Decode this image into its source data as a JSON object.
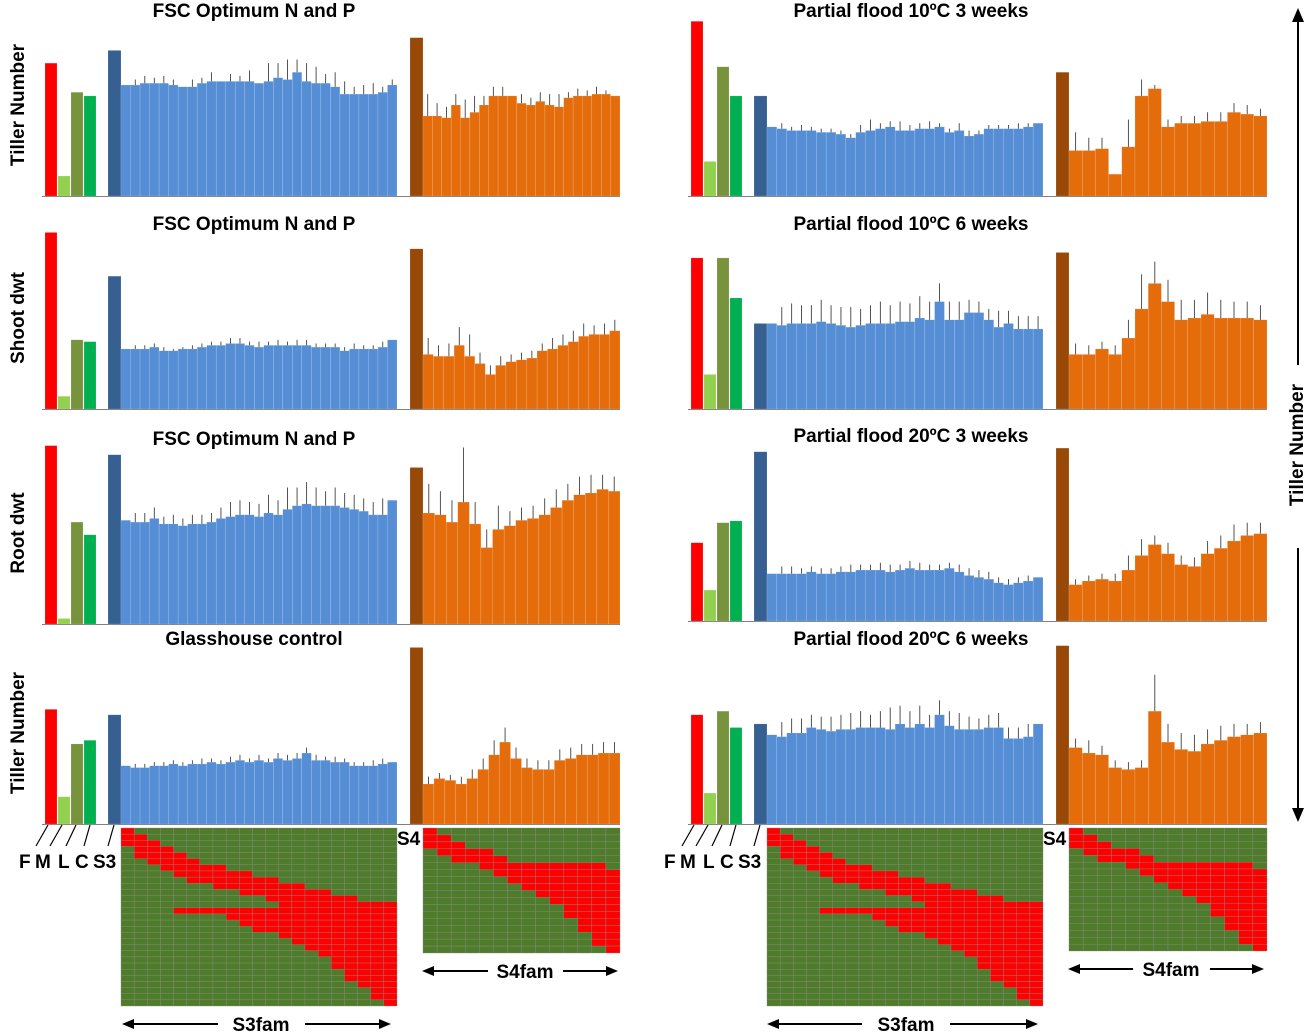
{
  "figure": {
    "right_axis_label": "Tiller Number",
    "parent_labels": [
      "F",
      "M",
      "L",
      "C",
      "S3"
    ],
    "s4_label": "S4",
    "s3fam_label": "S3fam",
    "s4fam_label": "S4fam"
  },
  "colors": {
    "F": "#ff0000",
    "M": "#92d050",
    "L": "#77933c",
    "C": "#00b050",
    "S3": "#376092",
    "S3fam": "#558ed5",
    "S4": "#984807",
    "S4fam": "#e46c0a",
    "genotype_red": "#ff0000",
    "genotype_green": "#4f7c2a"
  },
  "chart_data": [
    {
      "type": "bar",
      "title": "FSC Optimum N and P",
      "ylabel": "Tiller Number",
      "parents": {
        "F": 0.73,
        "M": 0.11,
        "L": 0.57,
        "C": 0.55,
        "S3": 0.8,
        "S4": 0.87
      },
      "s3fam": [
        0.61,
        0.61,
        0.62,
        0.62,
        0.62,
        0.61,
        0.6,
        0.6,
        0.62,
        0.63,
        0.63,
        0.63,
        0.63,
        0.63,
        0.62,
        0.63,
        0.65,
        0.64,
        0.68,
        0.63,
        0.62,
        0.62,
        0.6,
        0.56,
        0.56,
        0.56,
        0.56,
        0.57,
        0.61
      ],
      "s3fam_err": [
        0,
        0.03,
        0.04,
        0.03,
        0.04,
        0.03,
        0,
        0.04,
        0.03,
        0.05,
        0,
        0.04,
        0.03,
        0.06,
        0,
        0.1,
        0.08,
        0.11,
        0.07,
        0.1,
        0.09,
        0.05,
        0.08,
        0.07,
        0.04,
        0.05,
        0.06,
        0.03,
        0.03
      ],
      "s4fam": [
        0.44,
        0.44,
        0.43,
        0.5,
        0.43,
        0.46,
        0.5,
        0.55,
        0.55,
        0.55,
        0.51,
        0.5,
        0.52,
        0.5,
        0.49,
        0.54,
        0.55,
        0.55,
        0.56,
        0.56,
        0.55
      ],
      "s4fam_err": [
        0.12,
        0.07,
        0.06,
        0.06,
        0.1,
        0.09,
        0.05,
        0.05,
        0.05,
        0,
        0.05,
        0.04,
        0.05,
        0.06,
        0.07,
        0.03,
        0.04,
        0.03,
        0.04,
        0.02,
        0
      ]
    },
    {
      "type": "bar",
      "title": "FSC Optimum N and P",
      "ylabel": "Shoot dwt",
      "parents": {
        "F": 0.97,
        "M": 0.07,
        "L": 0.38,
        "C": 0.37,
        "S3": 0.73,
        "S4": 0.88
      },
      "s3fam": [
        0.33,
        0.33,
        0.33,
        0.34,
        0.32,
        0.32,
        0.33,
        0.33,
        0.34,
        0.35,
        0.35,
        0.36,
        0.36,
        0.35,
        0.34,
        0.35,
        0.35,
        0.35,
        0.35,
        0.35,
        0.34,
        0.34,
        0.34,
        0.32,
        0.33,
        0.33,
        0.33,
        0.34,
        0.38
      ],
      "s3fam_err": [
        0,
        0.02,
        0.02,
        0.02,
        0.02,
        0.01,
        0.01,
        0.02,
        0.02,
        0.02,
        0.02,
        0.03,
        0.03,
        0.02,
        0.03,
        0.02,
        0.03,
        0.02,
        0.03,
        0.03,
        0.02,
        0.02,
        0.02,
        0.02,
        0.03,
        0.02,
        0.02,
        0.03,
        0
      ],
      "s4fam": [
        0.3,
        0.29,
        0.29,
        0.35,
        0.29,
        0.25,
        0.19,
        0.24,
        0.26,
        0.27,
        0.28,
        0.32,
        0.33,
        0.35,
        0.37,
        0.4,
        0.41,
        0.41,
        0.43
      ],
      "s4fam_err": [
        0.09,
        0.06,
        0.07,
        0.1,
        0.12,
        0.06,
        0.05,
        0.05,
        0.04,
        0.04,
        0.04,
        0.04,
        0.06,
        0.06,
        0.06,
        0.07,
        0.05,
        0.06,
        0.06
      ]
    },
    {
      "type": "bar",
      "title": "FSC Optimum N and P",
      "ylabel": "Root dwt",
      "parents": {
        "F": 0.98,
        "M": 0.03,
        "L": 0.56,
        "C": 0.49,
        "S3": 0.93,
        "S4": 0.86
      },
      "s3fam": [
        0.57,
        0.56,
        0.56,
        0.58,
        0.55,
        0.55,
        0.54,
        0.55,
        0.55,
        0.56,
        0.58,
        0.59,
        0.6,
        0.6,
        0.59,
        0.61,
        0.6,
        0.63,
        0.65,
        0.66,
        0.65,
        0.65,
        0.65,
        0.64,
        0.63,
        0.62,
        0.6,
        0.6,
        0.68
      ],
      "s3fam_err": [
        0,
        0.05,
        0.05,
        0.06,
        0.04,
        0.05,
        0.04,
        0.05,
        0.05,
        0.05,
        0.06,
        0.08,
        0.08,
        0.07,
        0.07,
        0.1,
        0.08,
        0.12,
        0.1,
        0.12,
        0.1,
        0.08,
        0.1,
        0.08,
        0.08,
        0.07,
        0.07,
        0.09,
        0
      ],
      "s4fam": [
        0.61,
        0.6,
        0.56,
        0.67,
        0.55,
        0.42,
        0.52,
        0.54,
        0.57,
        0.58,
        0.6,
        0.64,
        0.68,
        0.71,
        0.72,
        0.74,
        0.73
      ],
      "s4fam_err": [
        0.16,
        0.13,
        0.12,
        0.3,
        0.12,
        0.1,
        0.13,
        0.08,
        0.07,
        0.07,
        0.09,
        0.1,
        0.09,
        0.1,
        0.1,
        0.08,
        0.08
      ]
    },
    {
      "type": "bar",
      "title": "Glasshouse control",
      "ylabel": "Tiller Number",
      "parents": {
        "F": 0.63,
        "M": 0.15,
        "L": 0.44,
        "C": 0.46,
        "S3": 0.6,
        "S4": 0.97
      },
      "s3fam": [
        0.32,
        0.31,
        0.31,
        0.32,
        0.32,
        0.33,
        0.32,
        0.33,
        0.33,
        0.34,
        0.33,
        0.34,
        0.35,
        0.34,
        0.35,
        0.34,
        0.36,
        0.35,
        0.36,
        0.39,
        0.35,
        0.35,
        0.34,
        0.34,
        0.32,
        0.32,
        0.32,
        0.33,
        0.34
      ],
      "s3fam_err": [
        0,
        0.02,
        0.02,
        0.02,
        0.02,
        0.02,
        0.02,
        0.02,
        0.03,
        0.02,
        0.02,
        0.03,
        0.03,
        0.02,
        0.03,
        0.02,
        0.03,
        0.03,
        0.03,
        0.03,
        0.03,
        0.02,
        0.03,
        0.02,
        0.02,
        0.02,
        0.03,
        0.03,
        0
      ],
      "s4fam": [
        0.22,
        0.25,
        0.24,
        0.22,
        0.25,
        0.3,
        0.38,
        0.45,
        0.36,
        0.31,
        0.3,
        0.3,
        0.35,
        0.36,
        0.38,
        0.38,
        0.39,
        0.39
      ],
      "s4fam_err": [
        0.04,
        0.03,
        0.03,
        0.04,
        0.05,
        0.06,
        0.08,
        0.08,
        0.06,
        0.05,
        0.05,
        0.05,
        0.06,
        0.06,
        0.06,
        0.06,
        0.06,
        0.06
      ]
    },
    {
      "type": "bar",
      "title": "Partial flood 10ºC 3 weeks",
      "ylabel": "",
      "parents": {
        "F": 0.96,
        "M": 0.19,
        "L": 0.71,
        "C": 0.55,
        "S3": 0.55,
        "S4": 0.68
      },
      "s3fam": [
        0.38,
        0.37,
        0.36,
        0.36,
        0.36,
        0.35,
        0.35,
        0.34,
        0.32,
        0.35,
        0.36,
        0.37,
        0.38,
        0.36,
        0.36,
        0.37,
        0.37,
        0.38,
        0.35,
        0.36,
        0.33,
        0.34,
        0.37,
        0.37,
        0.37,
        0.37,
        0.38,
        0.4
      ],
      "s3fam_err": [
        0,
        0.03,
        0.02,
        0.03,
        0.02,
        0.02,
        0.02,
        0.02,
        0.02,
        0.04,
        0.06,
        0.03,
        0.03,
        0.05,
        0.03,
        0.03,
        0.04,
        0.02,
        0.02,
        0.04,
        0.03,
        0.02,
        0.02,
        0.02,
        0.02,
        0.03,
        0.02,
        0
      ],
      "s4fam": [
        0.25,
        0.25,
        0.26,
        0.12,
        0.27,
        0.55,
        0.59,
        0.38,
        0.4,
        0.4,
        0.41,
        0.41,
        0.46,
        0.45,
        0.44
      ],
      "s4fam_err": [
        0.1,
        0.07,
        0.06,
        0,
        0.15,
        0.09,
        0.02,
        0.04,
        0.04,
        0.04,
        0.05,
        0.05,
        0.05,
        0.05,
        0.04
      ]
    },
    {
      "type": "bar",
      "title": "Partial flood 10ºC 6 weeks",
      "ylabel": "",
      "parents": {
        "F": 0.83,
        "M": 0.19,
        "L": 0.83,
        "C": 0.61,
        "S3": 0.47,
        "S4": 0.86
      },
      "s3fam": [
        0.47,
        0.46,
        0.47,
        0.47,
        0.47,
        0.48,
        0.47,
        0.46,
        0.45,
        0.46,
        0.47,
        0.47,
        0.47,
        0.48,
        0.48,
        0.5,
        0.49,
        0.59,
        0.49,
        0.49,
        0.53,
        0.53,
        0.49,
        0.45,
        0.47,
        0.44,
        0.44,
        0.44
      ],
      "s3fam_err": [
        0,
        0.1,
        0.11,
        0.1,
        0.1,
        0.12,
        0.1,
        0.1,
        0.11,
        0.09,
        0.1,
        0.12,
        0.1,
        0.11,
        0.1,
        0.12,
        0.1,
        0.1,
        0.1,
        0.1,
        0.07,
        0.06,
        0.06,
        0.09,
        0.07,
        0.07,
        0.07,
        0.07
      ],
      "s4fam": [
        0.3,
        0.3,
        0.33,
        0.3,
        0.39,
        0.55,
        0.69,
        0.59,
        0.49,
        0.5,
        0.52,
        0.5,
        0.5,
        0.5,
        0.49
      ],
      "s4fam_err": [
        0.06,
        0.05,
        0.04,
        0.05,
        0.1,
        0.19,
        0.12,
        0.12,
        0.11,
        0.1,
        0.12,
        0.1,
        0.09,
        0.09,
        0.08
      ]
    },
    {
      "type": "bar",
      "title": "Partial flood 20ºC 3 weeks",
      "ylabel": "",
      "parents": {
        "F": 0.43,
        "M": 0.17,
        "L": 0.54,
        "C": 0.55,
        "S3": 0.93,
        "S4": 0.95
      },
      "s3fam": [
        0.26,
        0.26,
        0.26,
        0.26,
        0.27,
        0.26,
        0.26,
        0.27,
        0.27,
        0.28,
        0.28,
        0.28,
        0.27,
        0.28,
        0.29,
        0.28,
        0.28,
        0.28,
        0.29,
        0.27,
        0.25,
        0.24,
        0.23,
        0.21,
        0.2,
        0.21,
        0.22,
        0.24
      ],
      "s3fam_err": [
        0,
        0.04,
        0.04,
        0.03,
        0.03,
        0.03,
        0.03,
        0.03,
        0.04,
        0.03,
        0.03,
        0.04,
        0.04,
        0.03,
        0.04,
        0.04,
        0.03,
        0.03,
        0.03,
        0.04,
        0.04,
        0.04,
        0.04,
        0.03,
        0.03,
        0.03,
        0.03,
        0
      ],
      "s4fam": [
        0.2,
        0.22,
        0.23,
        0.22,
        0.28,
        0.36,
        0.42,
        0.37,
        0.31,
        0.3,
        0.37,
        0.4,
        0.44,
        0.47,
        0.48
      ],
      "s4fam_err": [
        0.03,
        0.03,
        0.03,
        0.04,
        0.08,
        0.09,
        0.05,
        0.06,
        0.05,
        0.05,
        0.07,
        0.07,
        0.09,
        0.07,
        0.06
      ]
    },
    {
      "type": "bar",
      "title": "Partial flood 20ºC 6 weeks",
      "ylabel": "",
      "parents": {
        "F": 0.6,
        "M": 0.17,
        "L": 0.62,
        "C": 0.53,
        "S3": 0.55,
        "S4": 0.98
      },
      "s3fam": [
        0.49,
        0.48,
        0.5,
        0.5,
        0.53,
        0.52,
        0.51,
        0.52,
        0.52,
        0.53,
        0.53,
        0.53,
        0.52,
        0.55,
        0.53,
        0.55,
        0.53,
        0.6,
        0.54,
        0.52,
        0.52,
        0.52,
        0.53,
        0.53,
        0.47,
        0.47,
        0.48,
        0.55
      ],
      "s3fam_err": [
        0,
        0.08,
        0.08,
        0.08,
        0.07,
        0.07,
        0.08,
        0.08,
        0.09,
        0.09,
        0.07,
        0.09,
        0.12,
        0.1,
        0.09,
        0.1,
        0.07,
        0.08,
        0.08,
        0.09,
        0.07,
        0.06,
        0.07,
        0.08,
        0.06,
        0.06,
        0.07,
        0
      ],
      "s4fam": [
        0.42,
        0.39,
        0.38,
        0.31,
        0.3,
        0.31,
        0.62,
        0.45,
        0.41,
        0.4,
        0.44,
        0.46,
        0.48,
        0.49,
        0.5
      ],
      "s4fam_err": [
        0.05,
        0.07,
        0.05,
        0.04,
        0.04,
        0.04,
        0.2,
        0.1,
        0.09,
        0.09,
        0.08,
        0.08,
        0.07,
        0.06,
        0.06
      ]
    }
  ],
  "genotype_grids": {
    "s3fam": {
      "rows": 29,
      "cols": 21,
      "red_intervals": [
        [
          0,
          1
        ],
        [
          0,
          2
        ],
        [
          0,
          3
        ],
        [
          1,
          4
        ],
        [
          1,
          5
        ],
        [
          2,
          6
        ],
        [
          3,
          8
        ],
        [
          4,
          10
        ],
        [
          5,
          12
        ],
        [
          7,
          14
        ],
        [
          9,
          16
        ],
        [
          11,
          18
        ],
        [
          12,
          21
        ],
        [
          4,
          21
        ],
        [
          8,
          21
        ],
        [
          9,
          21
        ],
        [
          10,
          21
        ],
        [
          12,
          21
        ],
        [
          13,
          21
        ],
        [
          14,
          21
        ],
        [
          15,
          21
        ],
        [
          16,
          21
        ],
        [
          16,
          21
        ],
        [
          17,
          21
        ],
        [
          17,
          21
        ],
        [
          18,
          21
        ],
        [
          19,
          21
        ],
        [
          19,
          21
        ],
        [
          20,
          21
        ]
      ]
    },
    "s4fam": {
      "rows": 18,
      "cols": 14,
      "red_intervals": [
        [
          0,
          1
        ],
        [
          0,
          2
        ],
        [
          0,
          3
        ],
        [
          1,
          5
        ],
        [
          2,
          6
        ],
        [
          4,
          13
        ],
        [
          5,
          14
        ],
        [
          6,
          14
        ],
        [
          7,
          14
        ],
        [
          8,
          14
        ],
        [
          9,
          14
        ],
        [
          10,
          14
        ],
        [
          10,
          14
        ],
        [
          11,
          14
        ],
        [
          11,
          14
        ],
        [
          12,
          14
        ],
        [
          12,
          14
        ],
        [
          13,
          14
        ]
      ]
    }
  }
}
